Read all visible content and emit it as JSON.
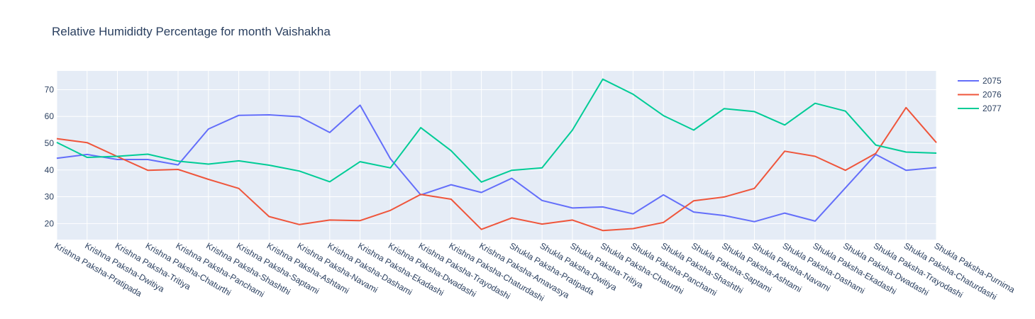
{
  "chart_data": {
    "type": "line",
    "title": "Relative Humididty Percentage for month Vaishakha",
    "xlabel": "",
    "ylabel": "",
    "ylim": [
      14,
      77
    ],
    "yticks": [
      20,
      30,
      40,
      50,
      60,
      70
    ],
    "grid": true,
    "legend_position": "top-right",
    "categories": [
      "Krishna Paksha-Pratipada",
      "Krishna Paksha-Dwitiya",
      "Krishna Paksha-Tritiya",
      "Krishna Paksha-Chaturthi",
      "Krishna Paksha-Panchami",
      "Krishna Paksha-Shashthi",
      "Krishna Paksha-Saptami",
      "Krishna Paksha-Ashtami",
      "Krishna Paksha-Navami",
      "Krishna Paksha-Dashami",
      "Krishna Paksha-Ekadashi",
      "Krishna Paksha-Dwadashi",
      "Krishna Paksha-Trayodashi",
      "Krishna Paksha-Chaturdashi",
      "Krishna Paksha-Amavasya",
      "Shukla Paksha-Pratipada",
      "Shukla Paksha-Dwitiya",
      "Shukla Paksha-Tritiya",
      "Shukla Paksha-Chaturthi",
      "Shukla Paksha-Panchami",
      "Shukla Paksha-Shashthi",
      "Shukla Paksha-Saptami",
      "Shukla Paksha-Ashtami",
      "Shukla Paksha-Navami",
      "Shukla Paksha-Dashami",
      "Shukla Paksha-Ekadashi",
      "Shukla Paksha-Dwadashi",
      "Shukla Paksha-Trayodashi",
      "Shukla Paksha-Chaturdashi",
      "Shukla Paksha-Purnima"
    ],
    "series": [
      {
        "name": "2075",
        "color": "#636efa",
        "values": [
          44.4,
          45.8,
          43.9,
          43.9,
          41.9,
          55.3,
          60.4,
          60.6,
          59.9,
          54.0,
          64.2,
          44.2,
          30.7,
          34.5,
          31.6,
          36.9,
          28.6,
          25.8,
          26.2,
          23.6,
          30.7,
          24.3,
          23.0,
          20.7,
          23.9,
          20.9,
          33.3,
          45.8,
          39.9,
          40.9
        ]
      },
      {
        "name": "2076",
        "color": "#ef553b",
        "values": [
          51.7,
          50.2,
          45.0,
          39.9,
          40.2,
          36.5,
          33.1,
          22.6,
          19.6,
          21.3,
          21.1,
          24.9,
          30.9,
          29.1,
          17.8,
          22.1,
          19.8,
          21.3,
          17.4,
          18.1,
          20.4,
          28.5,
          29.9,
          33.1,
          47.0,
          45.1,
          39.9,
          46.2,
          63.3,
          50.2
        ]
      },
      {
        "name": "2077",
        "color": "#00cc96",
        "values": [
          50.3,
          44.7,
          45.1,
          45.9,
          43.3,
          42.2,
          43.4,
          41.8,
          39.6,
          35.6,
          43.1,
          40.8,
          55.8,
          47.2,
          35.5,
          39.9,
          40.8,
          54.9,
          73.9,
          68.3,
          60.3,
          54.9,
          62.9,
          61.8,
          56.8,
          64.9,
          62.0,
          49.3,
          46.7,
          46.3
        ]
      }
    ]
  }
}
